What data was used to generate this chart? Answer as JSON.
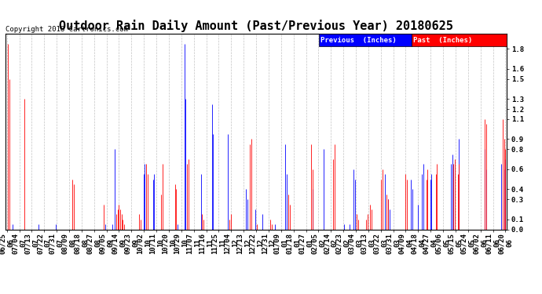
{
  "title": "Outdoor Rain Daily Amount (Past/Previous Year) 20180625",
  "copyright": "Copyright 2018 Cartronics.com",
  "yticks": [
    0.0,
    0.1,
    0.3,
    0.4,
    0.6,
    0.8,
    0.9,
    1.1,
    1.2,
    1.3,
    1.5,
    1.6,
    1.8
  ],
  "ylim": [
    0.0,
    1.95
  ],
  "legend_previous": "Previous  (Inches)",
  "legend_past": "Past  (Inches)",
  "color_previous": "#0000FF",
  "color_past": "#FF0000",
  "bg_color": "#FFFFFF",
  "grid_color": "#AAAAAA",
  "title_fontsize": 11,
  "tick_fontsize": 6.5,
  "n_points": 366,
  "xtick_labels": [
    "06/25",
    "07/04",
    "07/13",
    "07/22",
    "07/31",
    "08/09",
    "08/18",
    "08/27",
    "09/05",
    "09/14",
    "09/23",
    "10/02",
    "10/11",
    "10/20",
    "10/29",
    "11/07",
    "11/16",
    "11/25",
    "12/04",
    "12/13",
    "12/22",
    "12/31",
    "01/09",
    "01/18",
    "01/27",
    "02/05",
    "02/14",
    "02/23",
    "03/04",
    "03/13",
    "03/22",
    "03/31",
    "04/09",
    "04/18",
    "04/27",
    "05/06",
    "05/15",
    "05/24",
    "06/02",
    "06/11",
    "06/20"
  ],
  "xtick_years": [
    "06",
    "07",
    "07",
    "07",
    "07",
    "08",
    "08",
    "08",
    "09",
    "09",
    "09",
    "10",
    "10",
    "10",
    "10",
    "11",
    "11",
    "11",
    "12",
    "12",
    "12",
    "12",
    "01",
    "01",
    "01",
    "02",
    "02",
    "02",
    "03",
    "03",
    "03",
    "03",
    "04",
    "04",
    "04",
    "05",
    "05",
    "05",
    "06",
    "06",
    "06"
  ],
  "prev_rain": [
    0,
    0,
    0,
    0,
    0.05,
    0,
    0,
    0,
    0,
    0,
    0,
    0,
    0,
    0,
    0,
    0,
    0,
    0,
    0,
    0,
    0,
    0,
    0,
    0.05,
    0,
    0,
    0,
    0,
    0,
    0,
    0,
    0,
    0,
    0,
    0,
    0,
    0.05,
    0,
    0,
    0,
    0,
    0,
    0,
    0,
    0,
    0,
    0,
    0,
    0,
    0,
    0,
    0,
    0,
    0,
    0,
    0,
    0,
    0,
    0,
    0,
    0,
    0,
    0,
    0,
    0,
    0,
    0,
    0,
    0,
    0,
    0,
    0,
    0.05,
    0,
    0,
    0,
    0,
    0.05,
    0,
    0.8,
    0,
    0,
    0,
    0,
    0,
    0,
    0,
    0,
    0,
    0,
    0,
    0,
    0,
    0,
    0,
    0,
    0,
    0,
    0,
    0,
    0.55,
    0.65,
    0,
    0,
    0,
    0,
    0,
    0.5,
    0.55,
    0,
    0,
    0,
    0,
    0,
    0,
    0,
    0,
    0,
    0,
    0,
    0,
    0,
    0,
    0,
    0,
    0.05,
    0,
    0,
    0,
    0,
    1.85,
    1.3,
    0,
    0,
    0,
    0,
    0,
    0,
    0,
    0,
    0,
    0,
    0.55,
    0,
    0,
    0,
    0,
    0,
    0,
    0,
    1.25,
    0.95,
    0,
    0,
    0,
    0,
    0,
    0,
    0,
    0,
    0,
    0,
    0.95,
    0,
    0,
    0,
    0,
    0,
    0,
    0,
    0,
    0,
    0,
    0,
    0,
    0.4,
    0.3,
    0,
    0,
    0,
    0,
    0,
    0.2,
    0,
    0,
    0,
    0,
    0.15,
    0,
    0,
    0,
    0,
    0,
    0,
    0,
    0,
    0.05,
    0,
    0,
    0,
    0,
    0,
    0,
    0,
    0.85,
    0.55,
    0,
    0,
    0,
    0,
    0,
    0,
    0,
    0,
    0,
    0,
    0,
    0,
    0,
    0,
    0,
    0,
    0,
    0,
    0.4,
    0,
    0,
    0,
    0,
    0,
    0,
    0,
    0.8,
    0,
    0,
    0,
    0,
    0,
    0,
    0,
    0,
    0,
    0,
    0,
    0,
    0,
    0,
    0.05,
    0,
    0,
    0,
    0.05,
    0,
    0,
    0.6,
    0.5,
    0,
    0,
    0,
    0,
    0,
    0,
    0,
    0,
    0,
    0,
    0,
    0,
    0,
    0,
    0,
    0,
    0,
    0,
    0,
    0,
    0,
    0.55,
    0,
    0.3,
    0.2,
    0,
    0,
    0,
    0,
    0,
    0,
    0,
    0,
    0,
    0,
    0,
    0,
    0,
    0,
    0,
    0.5,
    0.4,
    0,
    0,
    0,
    0.25,
    0,
    0,
    0.55,
    0.65,
    0,
    0,
    0,
    0,
    0.5,
    0.55,
    0,
    0,
    0,
    0,
    0,
    0,
    0,
    0,
    0,
    0,
    0,
    0,
    0,
    0.65,
    0.75,
    0,
    0,
    0,
    0,
    0.9,
    0,
    0,
    0,
    0,
    0,
    0,
    0,
    0,
    0,
    0,
    0,
    0,
    0,
    0,
    0,
    0,
    0,
    0,
    0.8,
    0.6,
    0,
    0,
    0,
    0,
    0,
    0,
    0,
    0,
    0,
    0,
    0.65,
    0,
    0.6,
    0.7,
    0,
    0,
    1.1,
    0
  ],
  "past_rain": [
    0,
    1.85,
    1.5,
    0,
    0,
    0,
    0,
    0,
    0,
    0,
    0,
    0,
    0,
    1.3,
    0,
    0,
    0,
    0,
    0,
    0,
    0,
    0,
    0,
    0,
    0,
    0,
    0,
    0,
    0,
    0,
    0,
    0,
    0,
    0,
    0,
    0,
    0,
    0,
    0,
    0,
    0,
    0,
    0,
    0,
    0,
    0,
    0,
    0,
    0.5,
    0.45,
    0,
    0,
    0,
    0,
    0,
    0,
    0,
    0,
    0,
    0,
    0,
    0,
    0,
    0,
    0,
    0,
    0,
    0,
    0,
    0,
    0,
    0.25,
    0,
    0,
    0,
    0,
    0,
    0,
    0,
    0,
    0.15,
    0.2,
    0.25,
    0.2,
    0.15,
    0.1,
    0.05,
    0,
    0,
    0,
    0,
    0,
    0,
    0,
    0,
    0,
    0,
    0.15,
    0.1,
    0,
    0,
    0,
    0.65,
    0.55,
    0,
    0,
    0,
    0,
    0,
    0,
    0,
    0,
    0,
    0.35,
    0.65,
    0,
    0,
    0,
    0,
    0,
    0,
    0,
    0,
    0.45,
    0.4,
    0,
    0,
    0,
    0,
    0,
    0,
    0,
    0.65,
    0.7,
    0,
    0,
    0,
    0,
    0,
    0,
    0,
    0,
    0,
    0.15,
    0.1,
    0,
    0,
    0,
    0,
    0,
    0,
    0,
    0,
    0,
    0,
    0,
    0,
    0,
    0,
    0,
    0,
    0,
    0,
    0.1,
    0.15,
    0,
    0,
    0,
    0,
    0,
    0,
    0,
    0,
    0,
    0,
    0,
    0,
    0,
    0.85,
    0.9,
    0,
    0,
    0,
    0.05,
    0,
    0,
    0,
    0,
    0,
    0,
    0,
    0,
    0,
    0.1,
    0.05,
    0,
    0,
    0,
    0,
    0,
    0,
    0,
    0,
    0,
    0,
    0,
    0.35,
    0.25,
    0,
    0,
    0,
    0,
    0,
    0,
    0,
    0,
    0,
    0,
    0,
    0,
    0,
    0,
    0,
    0.85,
    0.6,
    0,
    0,
    0,
    0,
    0,
    0,
    0,
    0,
    0,
    0,
    0,
    0,
    0,
    0,
    0.7,
    0.85,
    0,
    0,
    0,
    0,
    0,
    0,
    0,
    0,
    0,
    0,
    0,
    0,
    0,
    0,
    0,
    0.15,
    0.1,
    0,
    0,
    0,
    0,
    0,
    0.1,
    0.15,
    0,
    0.25,
    0.2,
    0,
    0,
    0,
    0,
    0,
    0,
    0.5,
    0.6,
    0,
    0,
    0.35,
    0.3,
    0,
    0,
    0,
    0,
    0,
    0,
    0,
    0,
    0,
    0,
    0,
    0,
    0.55,
    0.5,
    0,
    0,
    0,
    0,
    0,
    0,
    0,
    0,
    0,
    0,
    0,
    0,
    0,
    0.5,
    0.6,
    0,
    0,
    0,
    0,
    0,
    0.55,
    0.65,
    0,
    0,
    0,
    0,
    0,
    0,
    0,
    0,
    0,
    0,
    0,
    0.65,
    0.7,
    0,
    0.55,
    0.65,
    0,
    0,
    0,
    0,
    0,
    0,
    0,
    0,
    0,
    0,
    0,
    0,
    0,
    0,
    0,
    0,
    0,
    0,
    1.1,
    1.05,
    0,
    0,
    0,
    0,
    0,
    0,
    0,
    0,
    0,
    0,
    0,
    1.1,
    0.9,
    0.8,
    0
  ]
}
